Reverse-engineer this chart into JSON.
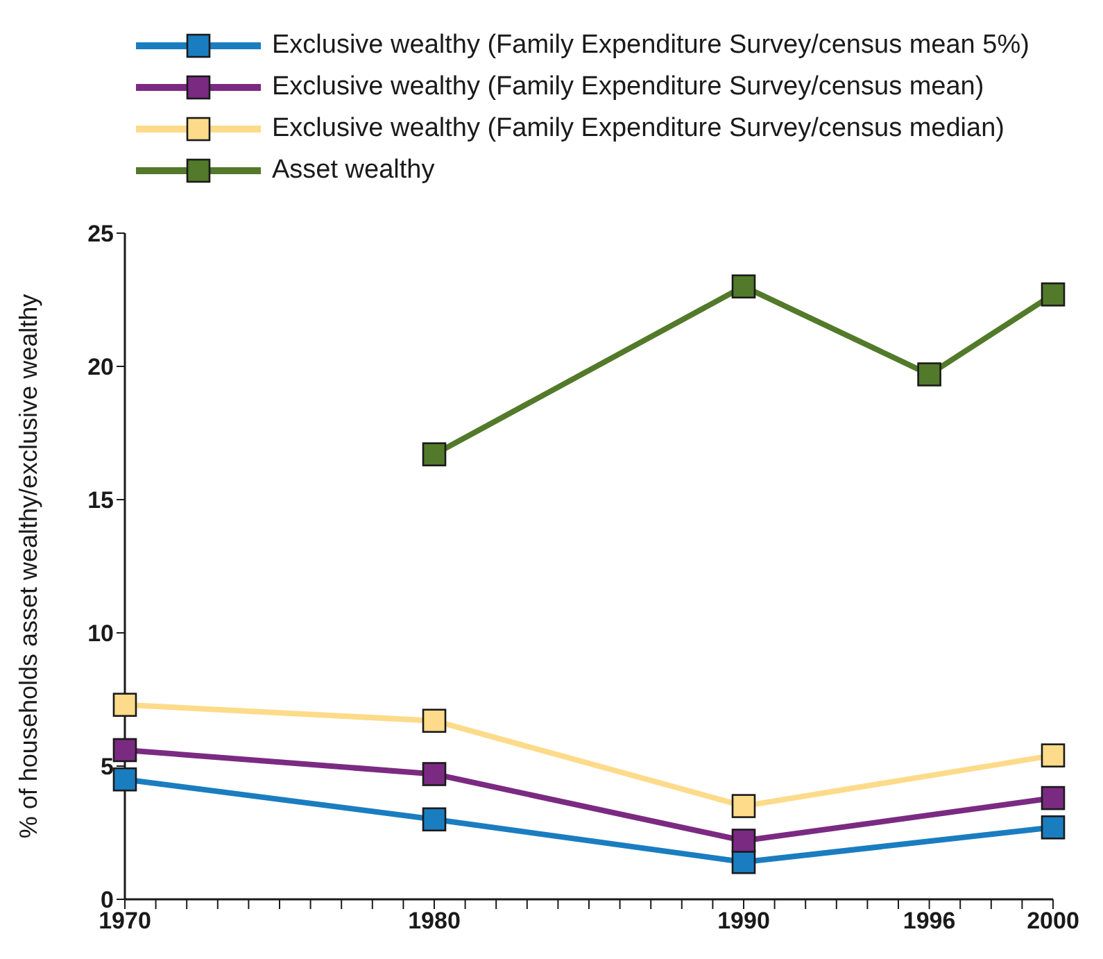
{
  "chart_data": {
    "type": "line",
    "ylabel": "% of households asset wealthy/exclusive wealthy",
    "x": [
      1970,
      1980,
      1990,
      2000
    ],
    "series": [
      {
        "name": "Exclusive wealthy (Family Expenditure Survey/census mean 5%)",
        "color": "#1a7dc0",
        "values": [
          4.5,
          3.0,
          1.4,
          2.7
        ]
      },
      {
        "name": "Exclusive wealthy (Family Expenditure Survey/census mean)",
        "color": "#7b2a82",
        "values": [
          5.6,
          4.7,
          2.2,
          3.8
        ]
      },
      {
        "name": "Exclusive wealthy (Family Expenditure Survey/census median)",
        "color": "#fddb8a",
        "values": [
          7.3,
          6.7,
          3.5,
          5.4
        ]
      },
      {
        "name": "Asset wealthy",
        "color": "#527a2a",
        "x": [
          1980,
          1990,
          1996,
          2000
        ],
        "values": [
          16.7,
          23.0,
          19.7,
          22.7
        ]
      }
    ],
    "xlim": [
      1970,
      2000
    ],
    "xticks": [
      1970,
      {
        "value": 1971,
        "label": null
      },
      {
        "value": 1972,
        "label": null
      },
      {
        "value": 1973,
        "label": null
      },
      {
        "value": 1974,
        "label": null
      },
      {
        "value": 1975,
        "label": null
      },
      {
        "value": 1976,
        "label": null
      },
      {
        "value": 1977,
        "label": null
      },
      {
        "value": 1978,
        "label": null
      },
      {
        "value": 1979,
        "label": null
      },
      1980,
      {
        "value": 1981,
        "label": null
      },
      {
        "value": 1982,
        "label": null
      },
      {
        "value": 1983,
        "label": null
      },
      {
        "value": 1984,
        "label": null
      },
      {
        "value": 1985,
        "label": null
      },
      {
        "value": 1986,
        "label": null
      },
      {
        "value": 1987,
        "label": null
      },
      {
        "value": 1988,
        "label": null
      },
      {
        "value": 1989,
        "label": null
      },
      1990,
      {
        "value": 1991,
        "label": null
      },
      {
        "value": 1992,
        "label": null
      },
      {
        "value": 1993,
        "label": null
      },
      {
        "value": 1994,
        "label": null
      },
      {
        "value": 1995,
        "label": null
      },
      1996,
      {
        "value": 1997,
        "label": null
      },
      {
        "value": 1998,
        "label": null
      },
      {
        "value": 1999,
        "label": null
      },
      2000
    ],
    "ylim": [
      0,
      25
    ],
    "yticks": [
      0,
      5,
      10,
      15,
      20,
      25
    ],
    "grid": false,
    "legend": "top left",
    "marker": "square",
    "line_style": "solid"
  }
}
